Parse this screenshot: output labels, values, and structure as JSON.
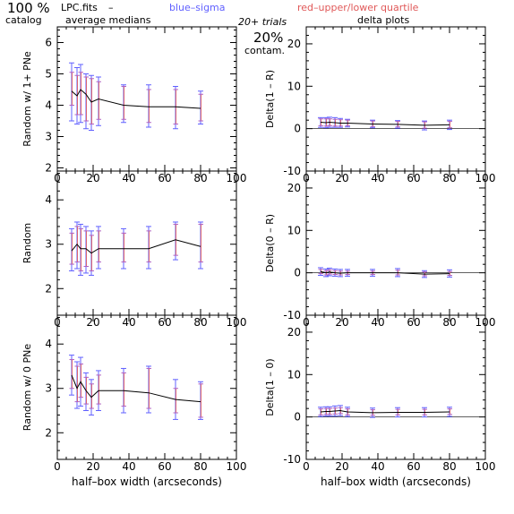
{
  "header": {
    "percent_big": "100 %",
    "catalog": "catalog",
    "file": "LPC.fits",
    "dash": "–",
    "average_medians": "average medians",
    "blue_label": "blue–sigma",
    "red_label": "red–upper/lower quartile",
    "trials": "20+ trials",
    "contam_pct": "20%",
    "contam": "contam.",
    "delta_plots": "delta plots"
  },
  "colors": {
    "blue": "#6060ff",
    "red": "#e05858",
    "purple": "#b060c0",
    "line": "#000000"
  },
  "chart_data": [
    {
      "type": "line",
      "panel": "left-top",
      "ylabel": "Random w/ 1+ PNe",
      "xlabel": "",
      "xlim": [
        0,
        100
      ],
      "ylim": [
        1.9,
        6.5
      ],
      "yticks": [
        2,
        3,
        4,
        5,
        6
      ],
      "xticks": [
        0,
        20,
        40,
        60,
        80,
        100
      ],
      "x": [
        8,
        11,
        13,
        16,
        19,
        23,
        37,
        51,
        66,
        80
      ],
      "y": [
        4.45,
        4.3,
        4.5,
        4.35,
        4.1,
        4.2,
        4.0,
        3.95,
        3.95,
        3.9
      ],
      "sigma": [
        [
          3.5,
          5.35
        ],
        [
          3.4,
          5.2
        ],
        [
          3.45,
          5.3
        ],
        [
          3.25,
          5.0
        ],
        [
          3.2,
          4.95
        ],
        [
          3.35,
          4.9
        ],
        [
          3.45,
          4.65
        ],
        [
          3.3,
          4.65
        ],
        [
          3.25,
          4.6
        ],
        [
          3.4,
          4.45
        ]
      ],
      "quartile": [
        [
          4.0,
          5.05
        ],
        [
          3.7,
          4.95
        ],
        [
          3.7,
          5.05
        ],
        [
          3.5,
          4.9
        ],
        [
          3.4,
          4.85
        ],
        [
          3.55,
          4.75
        ],
        [
          3.55,
          4.6
        ],
        [
          3.45,
          4.5
        ],
        [
          3.4,
          4.5
        ],
        [
          3.5,
          4.35
        ]
      ]
    },
    {
      "type": "line",
      "panel": "left-middle",
      "ylabel": "Random",
      "xlabel": "",
      "xlim": [
        0,
        100
      ],
      "ylim": [
        1.4,
        4.65
      ],
      "yticks": [
        2,
        3,
        4
      ],
      "xticks": [
        0,
        20,
        40,
        60,
        80,
        100
      ],
      "x": [
        8,
        11,
        13,
        16,
        19,
        23,
        37,
        51,
        66,
        80
      ],
      "y": [
        2.85,
        3.0,
        2.9,
        2.9,
        2.8,
        2.9,
        2.9,
        2.9,
        3.1,
        2.95
      ],
      "sigma": [
        [
          2.4,
          3.35
        ],
        [
          2.45,
          3.5
        ],
        [
          2.3,
          3.45
        ],
        [
          2.35,
          3.4
        ],
        [
          2.3,
          3.3
        ],
        [
          2.45,
          3.4
        ],
        [
          2.45,
          3.35
        ],
        [
          2.45,
          3.4
        ],
        [
          2.65,
          3.5
        ],
        [
          2.45,
          3.5
        ]
      ],
      "quartile": [
        [
          2.55,
          3.25
        ],
        [
          2.6,
          3.4
        ],
        [
          2.4,
          3.35
        ],
        [
          2.5,
          3.3
        ],
        [
          2.4,
          3.2
        ],
        [
          2.6,
          3.3
        ],
        [
          2.6,
          3.25
        ],
        [
          2.6,
          3.3
        ],
        [
          2.75,
          3.45
        ],
        [
          2.6,
          3.45
        ]
      ]
    },
    {
      "type": "line",
      "panel": "left-bottom",
      "ylabel": "Random w/ 0 PNe",
      "xlabel": "half–box width (arcseconds)",
      "xlim": [
        0,
        100
      ],
      "ylim": [
        1.4,
        4.65
      ],
      "yticks": [
        2,
        3,
        4
      ],
      "xticks": [
        0,
        20,
        40,
        60,
        80,
        100
      ],
      "x": [
        8,
        11,
        13,
        16,
        19,
        23,
        37,
        51,
        66,
        80
      ],
      "y": [
        3.3,
        3.0,
        3.15,
        2.95,
        2.8,
        2.95,
        2.95,
        2.9,
        2.75,
        2.7
      ],
      "sigma": [
        [
          2.85,
          3.75
        ],
        [
          2.55,
          3.6
        ],
        [
          2.6,
          3.7
        ],
        [
          2.5,
          3.35
        ],
        [
          2.4,
          3.2
        ],
        [
          2.5,
          3.4
        ],
        [
          2.45,
          3.45
        ],
        [
          2.45,
          3.5
        ],
        [
          2.3,
          3.2
        ],
        [
          2.3,
          3.15
        ]
      ],
      "quartile": [
        [
          3.0,
          3.65
        ],
        [
          2.7,
          3.5
        ],
        [
          2.8,
          3.55
        ],
        [
          2.65,
          3.25
        ],
        [
          2.55,
          3.1
        ],
        [
          2.65,
          3.3
        ],
        [
          2.6,
          3.35
        ],
        [
          2.55,
          3.45
        ],
        [
          2.45,
          3.0
        ],
        [
          2.35,
          3.1
        ]
      ]
    },
    {
      "type": "line",
      "panel": "right-top",
      "ylabel": "Delta(1 – R)",
      "xlabel": "",
      "xlim": [
        0,
        100
      ],
      "ylim": [
        -10,
        24
      ],
      "yticks": [
        -10,
        0,
        10,
        20
      ],
      "xticks": [
        0,
        20,
        40,
        60,
        80,
        100
      ],
      "x": [
        8,
        11,
        13,
        16,
        19,
        23,
        37,
        51,
        66,
        80
      ],
      "y": [
        1.5,
        1.4,
        1.5,
        1.4,
        1.3,
        1.3,
        1.1,
        1.0,
        0.8,
        0.9
      ],
      "sigma": [
        [
          0.3,
          2.6
        ],
        [
          0.2,
          2.6
        ],
        [
          0.3,
          2.7
        ],
        [
          0.3,
          2.6
        ],
        [
          0.3,
          2.4
        ],
        [
          0.4,
          2.2
        ],
        [
          0.2,
          2.0
        ],
        [
          0.1,
          1.9
        ],
        [
          -0.3,
          1.8
        ],
        [
          -0.2,
          2.0
        ]
      ],
      "quartile": [
        [
          0.7,
          2.3
        ],
        [
          0.6,
          2.3
        ],
        [
          0.7,
          2.3
        ],
        [
          0.6,
          2.2
        ],
        [
          0.6,
          2.1
        ],
        [
          0.7,
          2.0
        ],
        [
          0.5,
          1.8
        ],
        [
          0.4,
          1.7
        ],
        [
          0.1,
          1.6
        ],
        [
          0.2,
          1.7
        ]
      ]
    },
    {
      "type": "line",
      "panel": "right-middle",
      "ylabel": "Delta(0 – R)",
      "xlabel": "",
      "xlim": [
        0,
        100
      ],
      "ylim": [
        -10,
        24
      ],
      "yticks": [
        -10,
        0,
        10,
        20
      ],
      "xticks": [
        0,
        20,
        40,
        60,
        80,
        100
      ],
      "x": [
        8,
        11,
        13,
        16,
        19,
        23,
        37,
        51,
        66,
        80
      ],
      "y": [
        0.3,
        0.0,
        0.2,
        0.0,
        -0.1,
        0.0,
        0.0,
        0.0,
        -0.3,
        -0.2
      ],
      "sigma": [
        [
          -0.6,
          1.2
        ],
        [
          -0.9,
          0.9
        ],
        [
          -0.7,
          1.1
        ],
        [
          -0.8,
          0.9
        ],
        [
          -0.9,
          0.8
        ],
        [
          -0.8,
          0.8
        ],
        [
          -0.8,
          0.8
        ],
        [
          -0.9,
          1.0
        ],
        [
          -1.1,
          0.5
        ],
        [
          -1.0,
          0.7
        ]
      ],
      "quartile": [
        [
          -0.2,
          0.8
        ],
        [
          -0.5,
          0.5
        ],
        [
          -0.3,
          0.7
        ],
        [
          -0.4,
          0.5
        ],
        [
          -0.5,
          0.4
        ],
        [
          -0.4,
          0.4
        ],
        [
          -0.4,
          0.4
        ],
        [
          -0.5,
          0.6
        ],
        [
          -0.7,
          0.2
        ],
        [
          -0.6,
          0.3
        ]
      ]
    },
    {
      "type": "line",
      "panel": "right-bottom",
      "ylabel": "Delta(1 – 0)",
      "xlabel": "half–box width (arcseconds)",
      "xlim": [
        0,
        100
      ],
      "ylim": [
        -10,
        24
      ],
      "yticks": [
        -10,
        0,
        10,
        20
      ],
      "xticks": [
        0,
        20,
        40,
        60,
        80,
        100
      ],
      "x": [
        8,
        11,
        13,
        16,
        19,
        23,
        37,
        51,
        66,
        80
      ],
      "y": [
        1.2,
        1.3,
        1.3,
        1.4,
        1.5,
        1.2,
        1.0,
        1.1,
        1.1,
        1.2
      ],
      "sigma": [
        [
          0.1,
          2.3
        ],
        [
          0.2,
          2.4
        ],
        [
          0.2,
          2.4
        ],
        [
          0.2,
          2.6
        ],
        [
          0.3,
          2.7
        ],
        [
          0.1,
          2.3
        ],
        [
          -0.1,
          2.1
        ],
        [
          0.0,
          2.2
        ],
        [
          0.0,
          2.2
        ],
        [
          0.1,
          2.3
        ]
      ],
      "quartile": [
        [
          0.5,
          1.9
        ],
        [
          0.6,
          2.0
        ],
        [
          0.6,
          2.0
        ],
        [
          0.7,
          2.1
        ],
        [
          0.8,
          2.2
        ],
        [
          0.5,
          1.9
        ],
        [
          0.4,
          1.7
        ],
        [
          0.5,
          1.8
        ],
        [
          0.5,
          1.8
        ],
        [
          0.6,
          1.9
        ]
      ]
    }
  ]
}
